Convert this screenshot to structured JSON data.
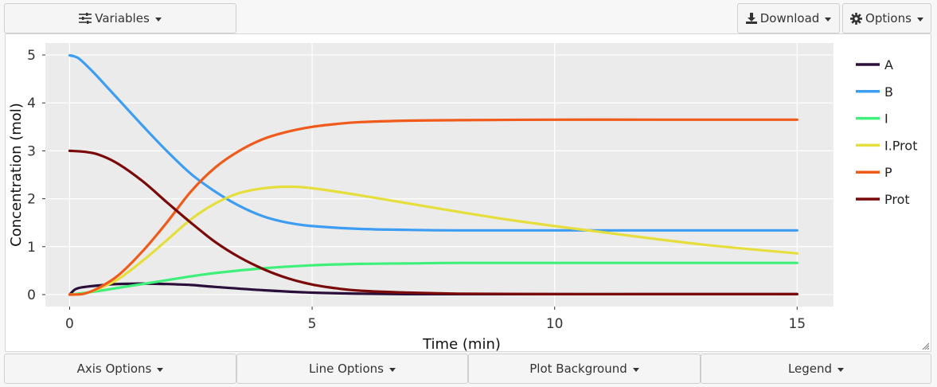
{
  "toolbar": {
    "variables_label": "Variables",
    "download_label": "Download",
    "options_label": "Options"
  },
  "bottom_bar": {
    "axis_options_label": "Axis Options",
    "line_options_label": "Line Options",
    "plot_background_label": "Plot Background",
    "legend_label": "Legend"
  },
  "chart_data": {
    "type": "line",
    "title": "",
    "xlabel": "Time (min)",
    "ylabel": "Concentration (mol)",
    "xlim": [
      -0.5,
      15.75
    ],
    "ylim": [
      -0.25,
      5.25
    ],
    "x_ticks": [
      0,
      5,
      10,
      15
    ],
    "y_ticks": [
      0,
      1,
      2,
      3,
      4,
      5
    ],
    "grid": true,
    "plot_background": "#ebebeb",
    "legend_placement": "right",
    "series": [
      {
        "name": "A",
        "color": "#2a0f3a",
        "x": [
          0,
          0.1,
          0.2,
          0.4,
          0.6,
          0.8,
          1,
          1.5,
          2,
          2.5,
          3,
          4,
          5,
          6,
          7,
          8,
          10,
          12,
          15
        ],
        "y": [
          0,
          0.1,
          0.14,
          0.17,
          0.19,
          0.21,
          0.22,
          0.23,
          0.22,
          0.2,
          0.16,
          0.09,
          0.04,
          0.02,
          0.01,
          0.01,
          0.01,
          0.01,
          0.01
        ]
      },
      {
        "name": "B",
        "color": "#3d9df3",
        "x": [
          0,
          0.1,
          0.2,
          0.4,
          0.6,
          0.8,
          1,
          1.5,
          2,
          2.5,
          3,
          3.5,
          4,
          4.5,
          5,
          6,
          7,
          8,
          10,
          12,
          15
        ],
        "y": [
          4.99,
          4.97,
          4.92,
          4.73,
          4.52,
          4.3,
          4.08,
          3.53,
          3.0,
          2.52,
          2.15,
          1.85,
          1.63,
          1.5,
          1.43,
          1.37,
          1.35,
          1.34,
          1.34,
          1.34,
          1.34
        ]
      },
      {
        "name": "I",
        "color": "#3ef07a",
        "x": [
          0,
          0.5,
          1,
          1.5,
          2,
          2.5,
          3,
          4,
          5,
          6,
          7,
          8,
          10,
          12,
          15
        ],
        "y": [
          0,
          0.06,
          0.14,
          0.22,
          0.3,
          0.38,
          0.45,
          0.55,
          0.61,
          0.64,
          0.65,
          0.66,
          0.66,
          0.66,
          0.66
        ]
      },
      {
        "name": "I.Prot",
        "color": "#e6de3c",
        "x": [
          0,
          0.3,
          0.6,
          1,
          1.5,
          2,
          2.5,
          3,
          3.5,
          4,
          4.5,
          5,
          6,
          7,
          8,
          9,
          10,
          11,
          12,
          13,
          14,
          15
        ],
        "y": [
          0,
          0.02,
          0.12,
          0.32,
          0.7,
          1.13,
          1.57,
          1.9,
          2.12,
          2.22,
          2.25,
          2.22,
          2.07,
          1.9,
          1.73,
          1.57,
          1.43,
          1.3,
          1.17,
          1.05,
          0.95,
          0.86
        ]
      },
      {
        "name": "P",
        "color": "#f05a1a",
        "x": [
          0,
          0.3,
          0.6,
          1,
          1.5,
          2,
          2.5,
          3,
          3.5,
          4,
          4.5,
          5,
          5.5,
          6,
          7,
          8,
          10,
          12,
          15
        ],
        "y": [
          0,
          0.02,
          0.14,
          0.4,
          0.9,
          1.5,
          2.15,
          2.65,
          3.0,
          3.25,
          3.4,
          3.5,
          3.56,
          3.6,
          3.63,
          3.64,
          3.65,
          3.65,
          3.65
        ]
      },
      {
        "name": "Prot",
        "color": "#7a0a0a",
        "x": [
          0,
          0.3,
          0.6,
          1,
          1.5,
          2,
          2.5,
          3,
          3.5,
          4,
          4.5,
          5,
          5.5,
          6,
          7,
          8,
          10,
          12,
          15
        ],
        "y": [
          3.0,
          2.98,
          2.92,
          2.73,
          2.37,
          1.93,
          1.5,
          1.1,
          0.78,
          0.53,
          0.34,
          0.21,
          0.13,
          0.08,
          0.04,
          0.02,
          0.01,
          0.01,
          0.01
        ]
      }
    ]
  }
}
